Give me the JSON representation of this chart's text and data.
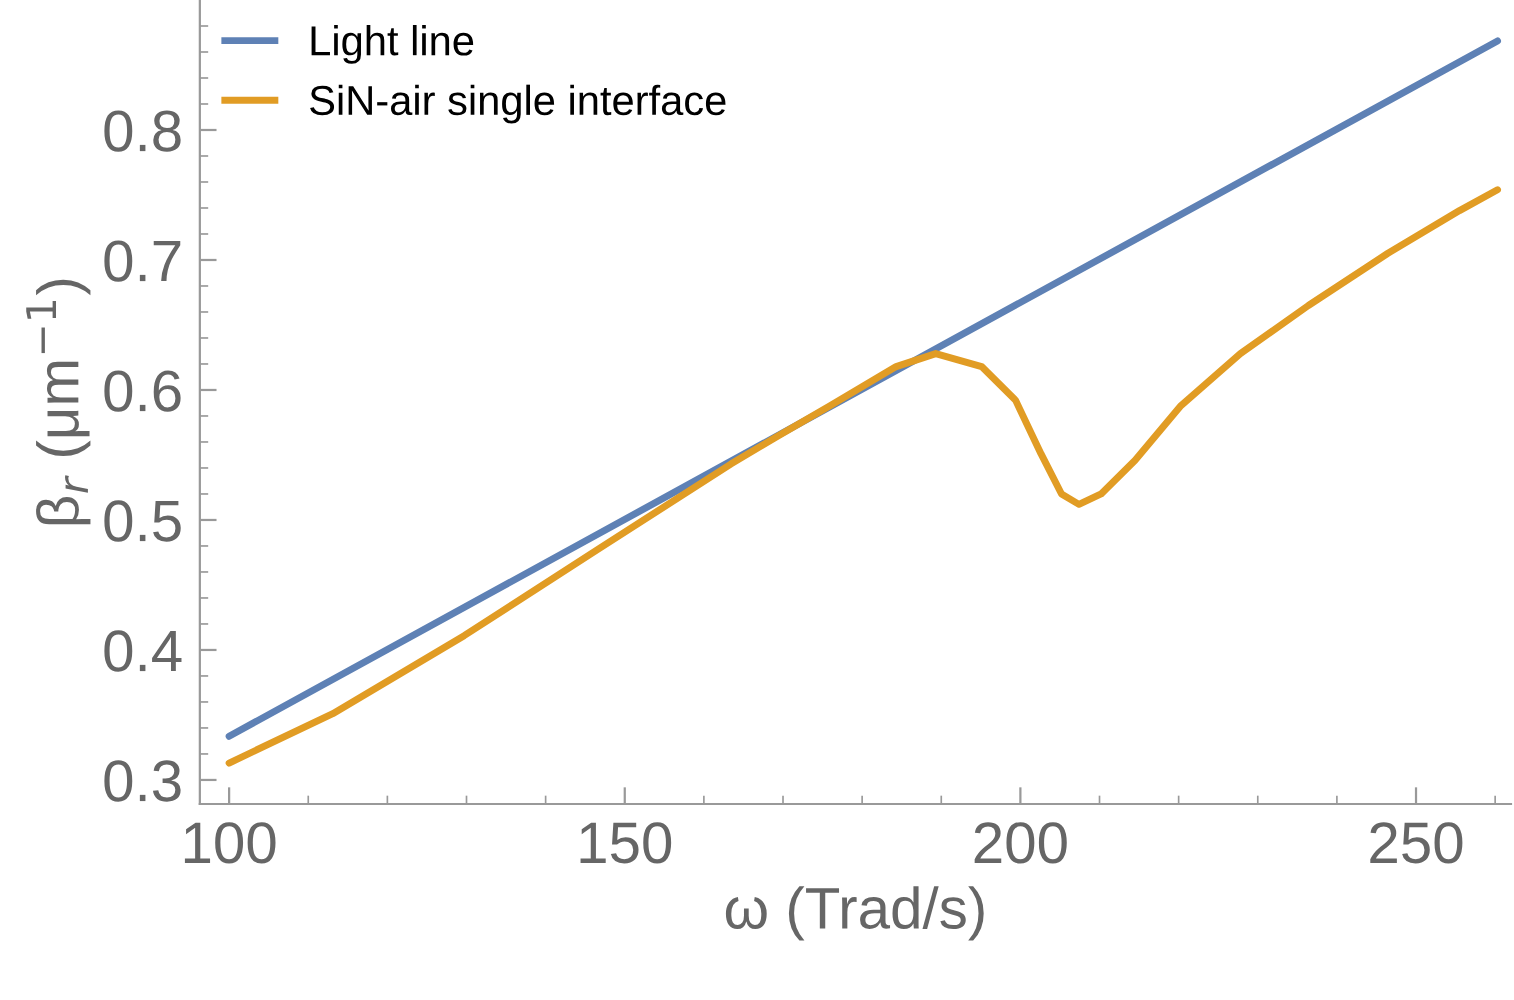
{
  "chart_data": {
    "type": "line",
    "xlabel": "ω (Trad/s)",
    "ylabel": "β$_{r}$ (μm$^{−1}$)",
    "xlim": [
      96.3,
      262
    ],
    "ylim": [
      0.2815,
      0.9
    ],
    "xticks": [
      100,
      {
        "value": 110,
        "label": null
      },
      {
        "value": 120,
        "label": null
      },
      {
        "value": 130,
        "label": null
      },
      {
        "value": 140,
        "label": null
      },
      150,
      {
        "value": 160,
        "label": null
      },
      {
        "value": 170,
        "label": null
      },
      {
        "value": 180,
        "label": null
      },
      {
        "value": 190,
        "label": null
      },
      200,
      {
        "value": 210,
        "label": null
      },
      {
        "value": 220,
        "label": null
      },
      {
        "value": 230,
        "label": null
      },
      {
        "value": 240,
        "label": null
      },
      250,
      {
        "value": 260,
        "label": null
      }
    ],
    "yticks": [
      0.3,
      {
        "value": 0.32,
        "label": null
      },
      {
        "value": 0.34,
        "label": null
      },
      {
        "value": 0.36,
        "label": null
      },
      {
        "value": 0.38,
        "label": null
      },
      0.4,
      {
        "value": 0.42,
        "label": null
      },
      {
        "value": 0.44,
        "label": null
      },
      {
        "value": 0.46,
        "label": null
      },
      {
        "value": 0.48,
        "label": null
      },
      0.5,
      {
        "value": 0.52,
        "label": null
      },
      {
        "value": 0.54,
        "label": null
      },
      {
        "value": 0.56,
        "label": null
      },
      {
        "value": 0.58,
        "label": null
      },
      0.6,
      {
        "value": 0.62,
        "label": null
      },
      {
        "value": 0.64,
        "label": null
      },
      {
        "value": 0.66,
        "label": null
      },
      {
        "value": 0.68,
        "label": null
      },
      0.7,
      {
        "value": 0.72,
        "label": null
      },
      {
        "value": 0.74,
        "label": null
      },
      {
        "value": 0.76,
        "label": null
      },
      {
        "value": 0.78,
        "label": null
      },
      0.8,
      {
        "value": 0.82,
        "label": null
      },
      {
        "value": 0.84,
        "label": null
      },
      {
        "value": 0.86,
        "label": null
      },
      {
        "value": 0.88,
        "label": null
      }
    ],
    "grid": false,
    "legend": "top left",
    "marker": "none",
    "line_style": "solid",
    "series": [
      {
        "name": "Light line",
        "color": "#5e81b5",
        "x": [
          100,
          260.3
        ],
        "values": [
          0.3336,
          0.8685
        ]
      },
      {
        "name": "SiN-air single interface",
        "color": "#e19c24",
        "x": [
          100,
          113.1,
          129.7,
          146.5,
          163.4,
          169.2,
          176,
          184.3,
          189.3,
          195.1,
          199.4,
          202.6,
          205.2,
          207.4,
          210.2,
          214.5,
          220.3,
          227.8,
          236.4,
          246.4,
          255.5,
          260.3
        ],
        "values": [
          0.313,
          0.351,
          0.411,
          0.477,
          0.543,
          0.564,
          0.588,
          0.618,
          0.628,
          0.618,
          0.592,
          0.551,
          0.52,
          0.512,
          0.52,
          0.546,
          0.588,
          0.628,
          0.665,
          0.705,
          0.738,
          0.754
        ]
      }
    ]
  }
}
